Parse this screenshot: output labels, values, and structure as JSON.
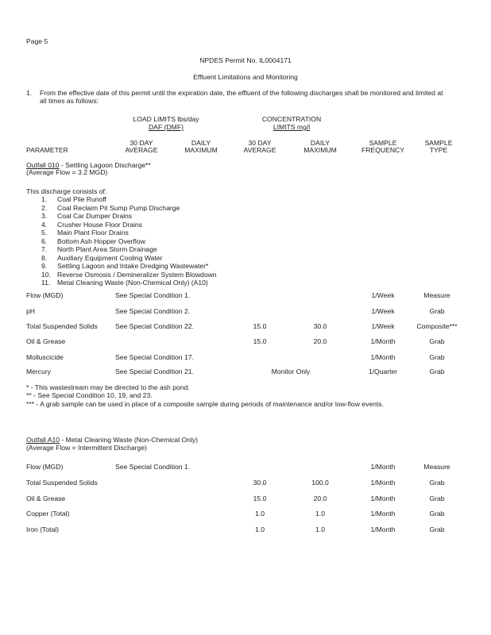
{
  "page_label": "Page 5",
  "permit_title": "NPDES Permit No. IL0004171",
  "section_title": "Effluent Limitations and Monitoring",
  "intro": {
    "number": "1.",
    "line1": "From the effective date of this permit until the expiration date, the effluent of the following discharges shall be monitored and limited at",
    "line2": "all times as follows:"
  },
  "group_headers": {
    "load_line1": "LOAD LIMITS lbs/day",
    "load_line2": "DAF (DMF)",
    "conc_line1": "CONCENTRATION",
    "conc_line2_prefix": "LIMITS ",
    "conc_line2_unit": "mg/l"
  },
  "columns": {
    "parameter": "PARAMETER",
    "load_avg": [
      "30 DAY",
      "AVERAGE"
    ],
    "load_max": [
      "DAILY",
      "MAXIMUM"
    ],
    "conc_avg": [
      "30 DAY",
      "AVERAGE"
    ],
    "conc_max": [
      "DAILY",
      "MAXIMUM"
    ],
    "freq": [
      "SAMPLE",
      "FREQUENCY"
    ],
    "type": [
      "SAMPLE",
      "TYPE"
    ]
  },
  "outfall1": {
    "name": "Outfall 010",
    "title_rest": " - Settling Lagoon Discharge**",
    "avg_flow": "(Average Flow = 3.2 MGD)",
    "consists_label": "This discharge consists of:",
    "components": [
      {
        "n": "1.",
        "text": "Coal Pile Runoff"
      },
      {
        "n": "2.",
        "text": "Coal Reclaim Pit Sump Pump Discharge"
      },
      {
        "n": "3.",
        "text": "Coal Car Dumper Drains"
      },
      {
        "n": "4.",
        "text": "Crusher House Floor Drains"
      },
      {
        "n": "5.",
        "text": "Main Plant Floor Drains"
      },
      {
        "n": "6.",
        "text": "Bottom Ash Hopper Overflow"
      },
      {
        "n": "7.",
        "text": "North Plant Area Storm Drainage"
      },
      {
        "n": "8.",
        "text": "Auxiliary Equipment Cooling Water"
      },
      {
        "n": "9.",
        "text": "Settling Lagoon and Intake Dredging Wastewater*"
      },
      {
        "n": "10.",
        "text": "Reverse Osmosis / Demineralizer System Blowdown"
      },
      {
        "n": "11.",
        "text": "Metal Cleaning Waste (Non-Chemical Only) (A10)"
      }
    ],
    "rows": [
      {
        "param": "Flow (MGD)",
        "cond": "See Special Condition 1.",
        "avg": "",
        "max": "",
        "freq": "1/Week",
        "type": "Measure"
      },
      {
        "param": "pH",
        "cond": "See Special Condition 2.",
        "avg": "",
        "max": "",
        "freq": "1/Week",
        "type": "Grab"
      },
      {
        "param": "Total Suspended Solids",
        "cond": "See Special Condition 22.",
        "avg": "15.0",
        "max": "30.0",
        "freq": "1/Week",
        "type": "Composite***"
      },
      {
        "param": "Oil & Grease",
        "cond": "",
        "avg": "15.0",
        "max": "20.0",
        "freq": "1/Month",
        "type": "Grab"
      },
      {
        "param": "Molluscicide",
        "cond": "See Special Condition 17.",
        "avg": "",
        "max": "",
        "freq": "1/Month",
        "type": "Grab"
      },
      {
        "param": "Mercury",
        "cond": "See Special Condition 21.",
        "monitor": "Monitor Only",
        "freq": "1/Quarter",
        "type": "Grab"
      }
    ],
    "footnotes": [
      "* - This wastestream may be directed to the ash pond.",
      "** - See Special Condition 10, 19, and 23.",
      "*** - A grab sample can be used in place of a composite sample during periods of maintenance and/or low-flow events."
    ]
  },
  "outfall2": {
    "name": "Outfall A10",
    "title_rest": " - Metal Cleaning Waste (Non-Chemical Only)",
    "avg_flow": "(Average Flow = Intermittent Discharge)",
    "rows": [
      {
        "param": "Flow (MGD)",
        "cond": "See Special Condition 1.",
        "avg": "",
        "max": "",
        "freq": "1/Month",
        "type": "Measure"
      },
      {
        "param": "Total Suspended Solids",
        "cond": "",
        "avg": "30.0",
        "max": "100.0",
        "freq": "1/Month",
        "type": "Grab"
      },
      {
        "param": "Oil & Grease",
        "cond": "",
        "avg": "15.0",
        "max": "20.0",
        "freq": "1/Month",
        "type": "Grab"
      },
      {
        "param": "Copper (Total)",
        "cond": "",
        "avg": "1.0",
        "max": "1.0",
        "freq": "1/Month",
        "type": "Grab"
      },
      {
        "param": "Iron (Total)",
        "cond": "",
        "avg": "1.0",
        "max": "1.0",
        "freq": "1/Month",
        "type": "Grab"
      }
    ]
  }
}
